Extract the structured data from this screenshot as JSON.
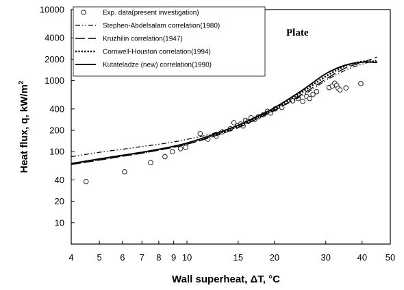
{
  "chart_data": {
    "type": "scatter",
    "xlabel_main": "Wall superheat, ",
    "xlabel_symbol": "ΔT",
    "xlabel_unit": ", °C",
    "ylabel_main": "Heat flux, q, kW/m",
    "ylabel_sup": "2",
    "xscale": "log",
    "yscale": "log",
    "xlim": [
      4,
      50
    ],
    "ylim": [
      5,
      10000
    ],
    "xticks": [
      4,
      5,
      6,
      7,
      8,
      9,
      10,
      15,
      20,
      30,
      40,
      50
    ],
    "xtick_labels": [
      "4",
      "5",
      "6",
      "7",
      "8",
      "9",
      "10",
      "15",
      "20",
      "30",
      "40",
      "50"
    ],
    "yticks": [
      10,
      20,
      40,
      100,
      200,
      400,
      1000,
      2000,
      4000,
      10000
    ],
    "ytick_labels": [
      "10",
      "20",
      "40",
      "100",
      "200",
      "400",
      "1000",
      "2000",
      "4000",
      "10000"
    ],
    "grid": false,
    "legend_position": "top-left",
    "annotation": "Plate",
    "series": [
      {
        "name": "Exp. data(present investigation)",
        "style": "open-circle",
        "x": [
          4.5,
          6.1,
          7.5,
          8.4,
          8.9,
          9.5,
          9.9,
          11.1,
          11.8,
          12.6,
          13.2,
          14.1,
          14.5,
          14.9,
          15.3,
          15.6,
          15.9,
          16.2,
          16.6,
          17.1,
          17.6,
          18.3,
          18.9,
          19.4,
          20.1,
          21.2,
          23.1,
          24.1,
          25.0,
          25.8,
          26.4,
          27.1,
          27.9,
          30.8,
          31.6,
          32.2,
          32.7,
          33.1,
          33.6,
          35.2,
          39.6
        ],
        "y": [
          38,
          52,
          70,
          85,
          100,
          110,
          115,
          180,
          150,
          165,
          190,
          210,
          255,
          230,
          245,
          230,
          275,
          265,
          300,
          285,
          310,
          330,
          370,
          350,
          400,
          420,
          520,
          560,
          510,
          600,
          560,
          640,
          700,
          800,
          840,
          920,
          860,
          780,
          740,
          790,
          910
        ]
      },
      {
        "name": "Stephen-Abdelsalam correlation(1980)",
        "style": "dash-dot-dot",
        "x": [
          4,
          5,
          6,
          7,
          8,
          9,
          10,
          12,
          15,
          18,
          20,
          25,
          30,
          35,
          40,
          45
        ],
        "y": [
          85,
          98,
          108,
          118,
          127,
          137,
          149,
          176,
          232,
          325,
          385,
          620,
          1000,
          1400,
          1700,
          1950
        ]
      },
      {
        "name": "Kruzhilin correlation(1947)",
        "style": "long-dash",
        "x": [
          4,
          5,
          6,
          7,
          8,
          9,
          10,
          12,
          15,
          18,
          20,
          25,
          30,
          35,
          40,
          45
        ],
        "y": [
          66,
          76,
          86,
          95,
          105,
          115,
          127,
          158,
          218,
          310,
          380,
          650,
          1050,
          1500,
          1800,
          2150
        ]
      },
      {
        "name": "Cornwell-Houston correlation(1994)",
        "style": "dotted",
        "x": [
          4,
          5,
          6,
          7,
          8,
          9,
          10,
          12,
          15,
          18,
          20,
          25,
          30,
          35,
          40,
          45
        ],
        "y": [
          67,
          78,
          88,
          97,
          107,
          118,
          130,
          165,
          228,
          320,
          400,
          700,
          1150,
          1600,
          1850,
          1850
        ]
      },
      {
        "name": "Kutateladze (new) correlation(1990)",
        "style": "solid",
        "x": [
          4,
          5,
          6,
          7,
          8,
          9,
          10,
          12,
          15,
          18,
          20,
          25,
          30,
          35,
          40,
          45
        ],
        "y": [
          68,
          79,
          89,
          98,
          108,
          119,
          132,
          168,
          235,
          335,
          415,
          740,
          1250,
          1650,
          1820,
          1800
        ]
      }
    ]
  }
}
